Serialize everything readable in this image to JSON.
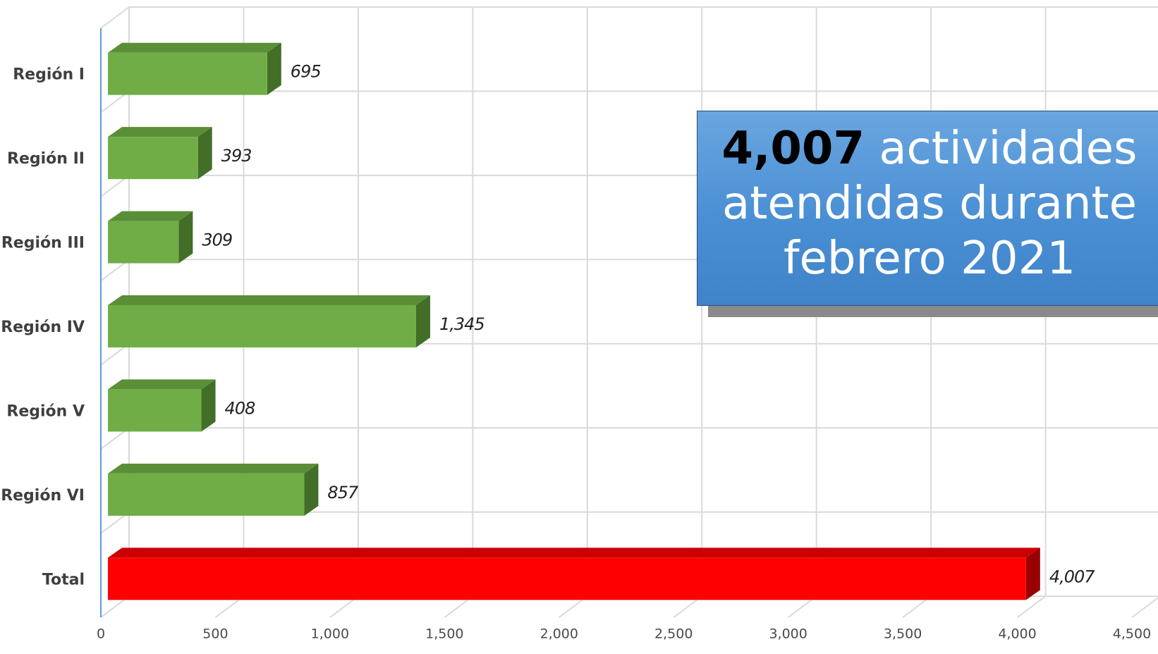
{
  "chart_data": {
    "type": "bar",
    "orientation": "horizontal",
    "style": "3d",
    "categories": [
      "Región I",
      "Región II",
      "Región III",
      "Región IV",
      "Región V",
      "Región VI",
      "Total"
    ],
    "values": [
      695,
      393,
      309,
      1345,
      408,
      857,
      4007
    ],
    "data_labels": [
      "695",
      "393",
      "309",
      "1,345",
      "408",
      "857",
      "4,007"
    ],
    "xlim": [
      0,
      4500
    ],
    "x_ticks": [
      0,
      500,
      1000,
      1500,
      2000,
      2500,
      3000,
      3500,
      4000,
      4500
    ],
    "x_tick_labels": [
      "0",
      "500",
      "1,000",
      "1,500",
      "2,000",
      "2,500",
      "3,000",
      "3,500",
      "4,000",
      "4,500"
    ],
    "grid": true,
    "colors": {
      "region_bar": "#70ad47",
      "region_bar_top": "#5b8f37",
      "region_bar_side": "#426e28",
      "total_bar": "#ff0000",
      "total_bar_top": "#cc0000",
      "total_bar_side": "#990000",
      "grid": "#d9d9d9",
      "axis": "#5b9bd5"
    }
  },
  "callout": {
    "number": "4,007",
    "line1_rest": " actividades",
    "line2": "atendidas durante",
    "line3": "febrero 2021",
    "colors": {
      "fill_top": "#6aa6e0",
      "fill_bottom": "#3f83c8",
      "shadow": "#8a8a8a"
    }
  }
}
